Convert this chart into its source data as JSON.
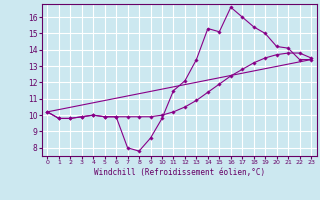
{
  "title": "",
  "xlabel": "Windchill (Refroidissement éolien,°C)",
  "ylabel": "",
  "background_color": "#cce8f0",
  "grid_color": "#ffffff",
  "line_color": "#880088",
  "xlim": [
    -0.5,
    23.5
  ],
  "ylim": [
    7.5,
    16.8
  ],
  "xticks": [
    0,
    1,
    2,
    3,
    4,
    5,
    6,
    7,
    8,
    9,
    10,
    11,
    12,
    13,
    14,
    15,
    16,
    17,
    18,
    19,
    20,
    21,
    22,
    23
  ],
  "yticks": [
    8,
    9,
    10,
    11,
    12,
    13,
    14,
    15,
    16
  ],
  "line1_x": [
    0,
    1,
    2,
    3,
    4,
    5,
    6,
    7,
    8,
    9,
    10,
    11,
    12,
    13,
    14,
    15,
    16,
    17,
    18,
    19,
    20,
    21,
    22,
    23
  ],
  "line1_y": [
    10.2,
    9.8,
    9.8,
    9.9,
    10.0,
    9.9,
    9.9,
    8.0,
    7.8,
    8.6,
    9.8,
    11.5,
    12.1,
    13.4,
    15.3,
    15.1,
    16.6,
    16.0,
    15.4,
    15.0,
    14.2,
    14.1,
    13.4,
    13.4
  ],
  "line2_x": [
    0,
    1,
    2,
    3,
    4,
    5,
    6,
    7,
    8,
    9,
    10,
    11,
    12,
    13,
    14,
    15,
    16,
    17,
    18,
    19,
    20,
    21,
    22,
    23
  ],
  "line2_y": [
    10.2,
    9.8,
    9.8,
    9.9,
    10.0,
    9.9,
    9.9,
    9.9,
    9.9,
    9.9,
    10.0,
    10.2,
    10.5,
    10.9,
    11.4,
    11.9,
    12.4,
    12.8,
    13.2,
    13.5,
    13.7,
    13.8,
    13.8,
    13.5
  ],
  "line3_x": [
    0,
    23
  ],
  "line3_y": [
    10.2,
    13.4
  ],
  "xlabel_fontsize": 5.5,
  "ytick_fontsize": 5.5,
  "xtick_fontsize": 4.5
}
